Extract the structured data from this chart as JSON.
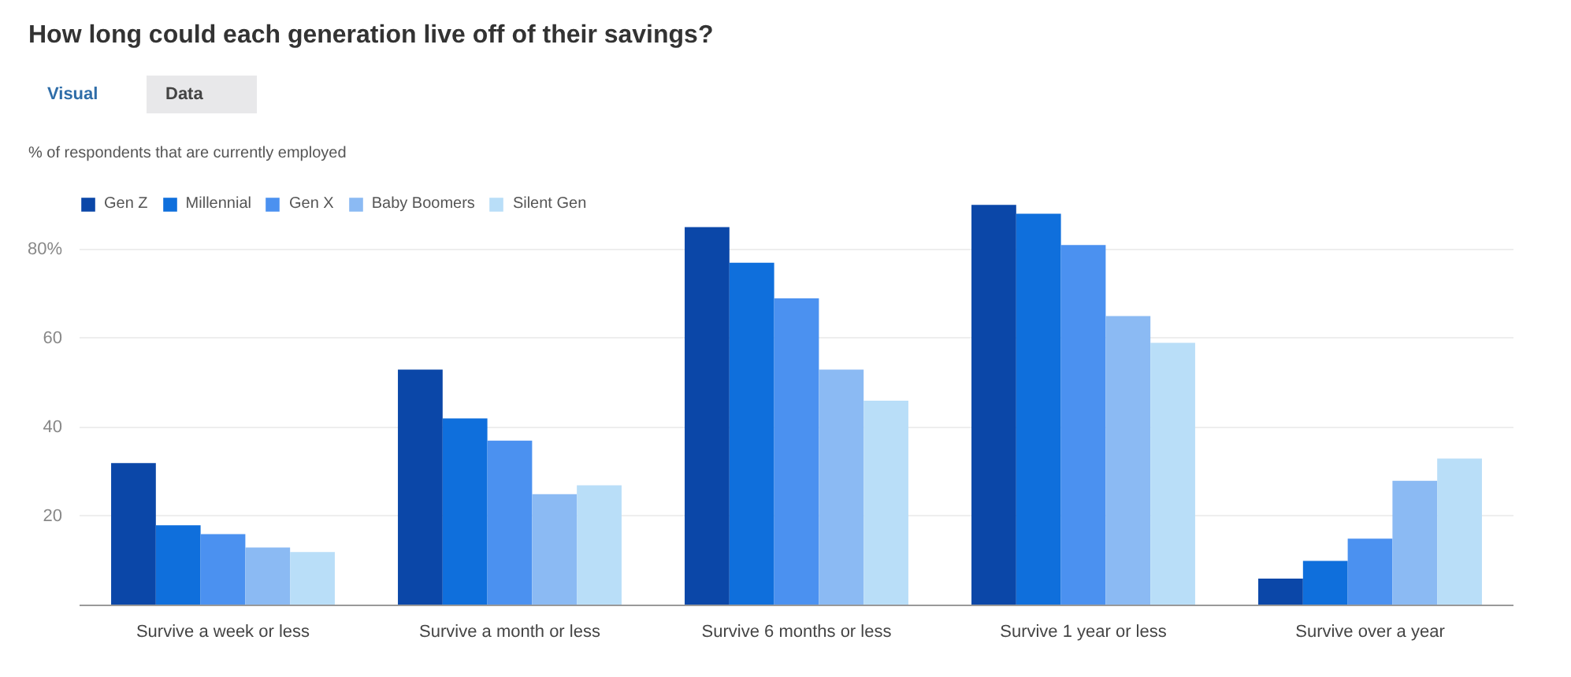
{
  "chart_data": {
    "type": "bar",
    "title": "How long could each generation live off of their savings?",
    "subtitle": "% of respondents that are currently employed",
    "annotations": [
      "Visual",
      "Data"
    ],
    "categories": [
      "Survive a week or less",
      "Survive a month or less",
      "Survive 6 months or less",
      "Survive 1 year or less",
      "Survive over a year"
    ],
    "series": [
      {
        "name": "Gen Z",
        "color": "#0b47a8",
        "values": [
          32,
          53,
          85,
          90,
          6
        ]
      },
      {
        "name": "Millennial",
        "color": "#0f6fdc",
        "values": [
          18,
          42,
          77,
          88,
          10
        ]
      },
      {
        "name": "Gen X",
        "color": "#4b91f0",
        "values": [
          16,
          37,
          69,
          81,
          15
        ]
      },
      {
        "name": "Baby Boomers",
        "color": "#8bbaf3",
        "values": [
          13,
          25,
          53,
          65,
          28
        ]
      },
      {
        "name": "Silent Gen",
        "color": "#b9def8",
        "values": [
          12,
          27,
          46,
          59,
          33
        ]
      }
    ],
    "ylim": [
      0,
      92
    ],
    "yticks": [
      20,
      40,
      60,
      {
        "value": 80,
        "label": "80%"
      }
    ],
    "grid": "y",
    "legend": "top left"
  }
}
